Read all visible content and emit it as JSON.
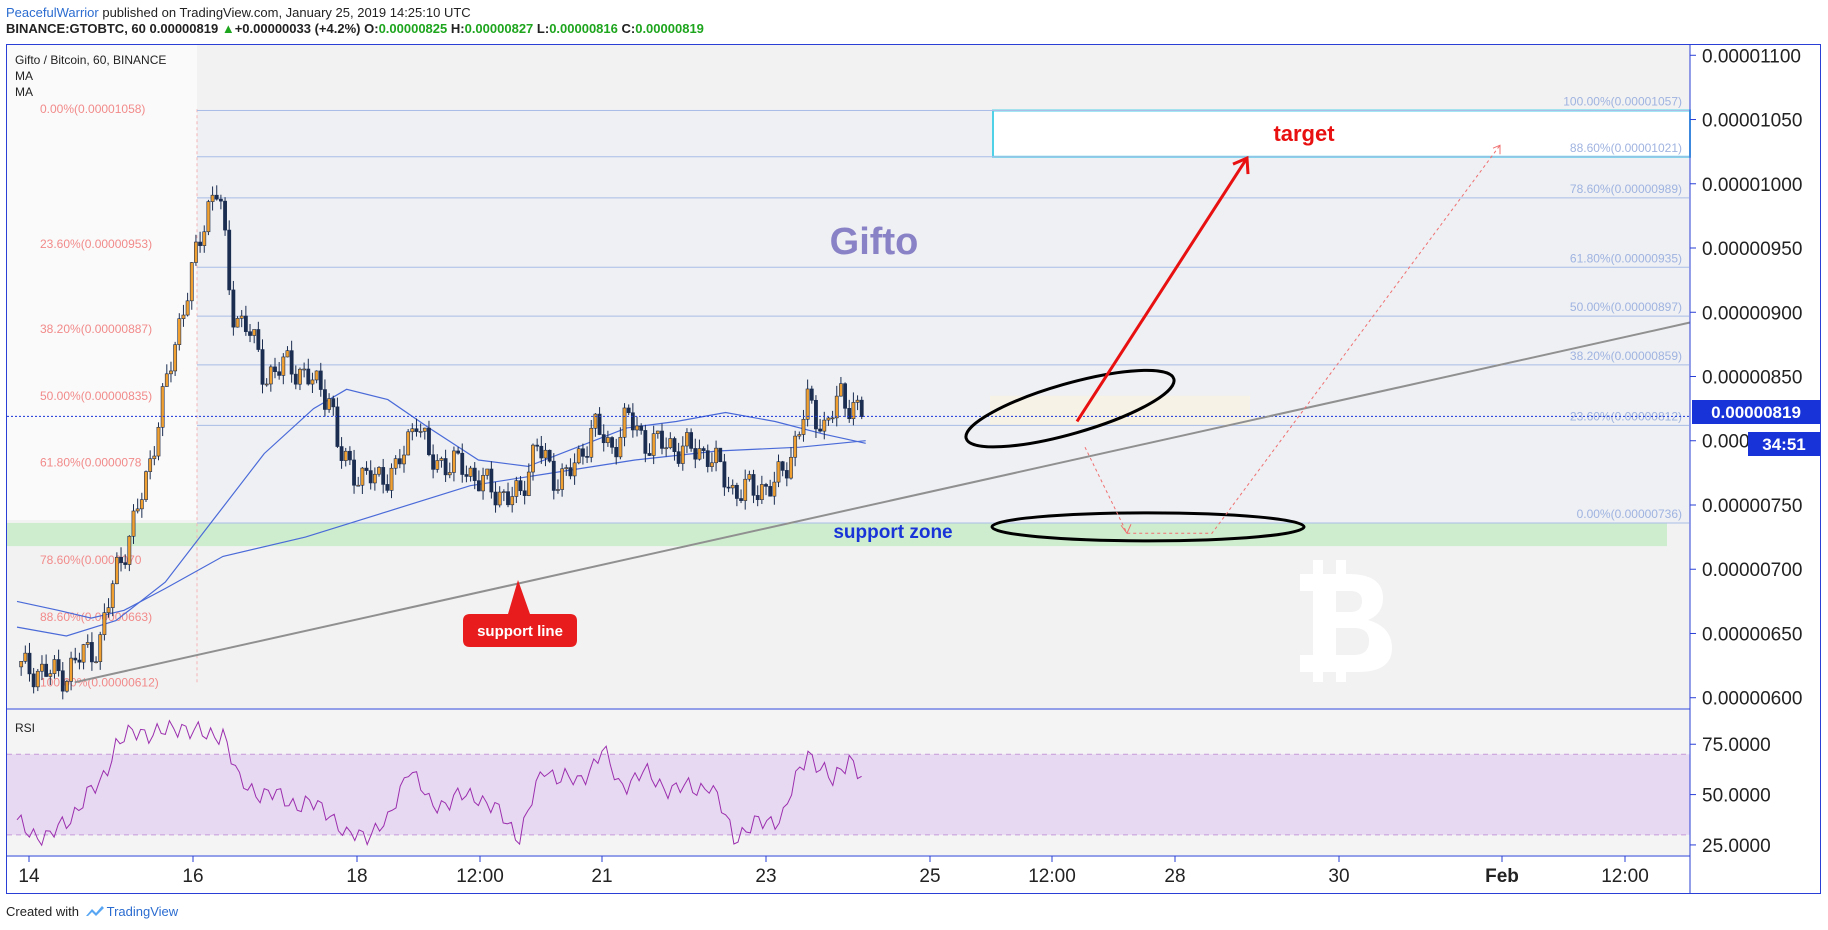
{
  "header": {
    "author": "PeacefulWarrior",
    "published": "published on TradingView.com, January 25, 2019 14:25:10 UTC",
    "symbol": "BINANCE:GTOBTC, 60",
    "last": "0.00000819",
    "change": "+0.00000033 (+4.2%)",
    "o_label": "O:",
    "o": "0.00000825",
    "h_label": "H:",
    "h": "0.00000827",
    "l_label": "L:",
    "l": "0.00000816",
    "c_label": "C:",
    "c": "0.00000819"
  },
  "legend": {
    "title": "Gifto / Bitcoin, 60, BINANCE",
    "ma1": "MA",
    "ma2": "MA"
  },
  "rsi_label": "RSI",
  "annotations": {
    "gifto": "Gifto",
    "target": "target",
    "support_zone": "support zone",
    "support_line": "support line",
    "price_tag": "0.00000819",
    "countdown": "34:51"
  },
  "footer": {
    "created": "Created with",
    "brand": "TradingView"
  },
  "colors": {
    "candle_up": "#f0a030",
    "candle_down": "#1b2d50",
    "ma": "#4a6ad8",
    "rsi": "#9b2fae",
    "fib_left": "#f28a8a",
    "fib_right": "#9fb3e0",
    "target_box": "#4fd1e8",
    "arrow_red": "#e81010",
    "accent_blue": "#1834d8"
  },
  "chart_data": [
    {
      "type": "candlestick",
      "title": "Gifto / Bitcoin, 60, BINANCE",
      "x_tick_labels": [
        "14",
        "16",
        "18",
        "12:00",
        "21",
        "23",
        "25",
        "12:00",
        "28",
        "30",
        "Feb",
        "12:00"
      ],
      "y_tick_labels": [
        "0.00001100",
        "0.00001050",
        "0.00001000",
        "0.00000950",
        "0.00000900",
        "0.00000850",
        "0.000",
        "0.00000750",
        "0.00000700",
        "0.00000650",
        "0.00000600"
      ],
      "y_ticks": [
        1.1e-05,
        1.05e-05,
        1e-05,
        9.5e-06,
        9e-06,
        8.5e-06,
        8e-06,
        7.5e-06,
        7e-06,
        6.5e-06,
        6e-06
      ],
      "ylim": [
        5.92e-06,
        1.108e-05
      ],
      "last_price": 8.19e-06,
      "close_path": [
        {
          "x": 0.0,
          "y": 6.24e-06
        },
        {
          "x": 0.3,
          "y": 6.2e-06
        },
        {
          "x": 0.6,
          "y": 6.18e-06
        },
        {
          "x": 0.8,
          "y": 6.35e-06
        },
        {
          "x": 1.0,
          "y": 6.4e-06
        },
        {
          "x": 1.2,
          "y": 7e-06
        },
        {
          "x": 1.4,
          "y": 7.3e-06
        },
        {
          "x": 1.6,
          "y": 7.8e-06
        },
        {
          "x": 1.8,
          "y": 8.4e-06
        },
        {
          "x": 2.0,
          "y": 9e-06
        },
        {
          "x": 2.2,
          "y": 9.5e-06
        },
        {
          "x": 2.35,
          "y": 9.9e-06
        },
        {
          "x": 2.45,
          "y": 1e-05
        },
        {
          "x": 2.6,
          "y": 9e-06
        },
        {
          "x": 2.8,
          "y": 8.9e-06
        },
        {
          "x": 3.0,
          "y": 8.5e-06
        },
        {
          "x": 3.3,
          "y": 8.6e-06
        },
        {
          "x": 3.6,
          "y": 8.45e-06
        },
        {
          "x": 3.8,
          "y": 8.35e-06
        },
        {
          "x": 3.9,
          "y": 7.9e-06
        },
        {
          "x": 4.2,
          "y": 7.7e-06
        },
        {
          "x": 4.6,
          "y": 7.75e-06
        },
        {
          "x": 4.85,
          "y": 8.2e-06
        },
        {
          "x": 5.0,
          "y": 7.85e-06
        },
        {
          "x": 5.4,
          "y": 7.8e-06
        },
        {
          "x": 5.8,
          "y": 7.6e-06
        },
        {
          "x": 6.1,
          "y": 7.55e-06
        },
        {
          "x": 6.3,
          "y": 8e-06
        },
        {
          "x": 6.5,
          "y": 7.7e-06
        },
        {
          "x": 6.8,
          "y": 7.8e-06
        },
        {
          "x": 7.0,
          "y": 8.15e-06
        },
        {
          "x": 7.2,
          "y": 7.9e-06
        },
        {
          "x": 7.4,
          "y": 8.2e-06
        },
        {
          "x": 7.6,
          "y": 8e-06
        },
        {
          "x": 8.0,
          "y": 7.95e-06
        },
        {
          "x": 8.4,
          "y": 7.9e-06
        },
        {
          "x": 8.7,
          "y": 7.6e-06
        },
        {
          "x": 9.2,
          "y": 7.65e-06
        },
        {
          "x": 9.4,
          "y": 7.9e-06
        },
        {
          "x": 9.6,
          "y": 8.3e-06
        },
        {
          "x": 9.8,
          "y": 8.1e-06
        },
        {
          "x": 10.0,
          "y": 8.35e-06
        },
        {
          "x": 10.3,
          "y": 8.19e-06
        }
      ],
      "ma_slow": [
        {
          "x": 0.0,
          "y": 6.75e-06
        },
        {
          "x": 0.5,
          "y": 6.68e-06
        },
        {
          "x": 0.9,
          "y": 6.62e-06
        },
        {
          "x": 1.3,
          "y": 6.68e-06
        },
        {
          "x": 1.8,
          "y": 6.85e-06
        },
        {
          "x": 2.5,
          "y": 7.1e-06
        },
        {
          "x": 3.5,
          "y": 7.25e-06
        },
        {
          "x": 4.5,
          "y": 7.45e-06
        },
        {
          "x": 5.5,
          "y": 7.65e-06
        },
        {
          "x": 6.5,
          "y": 7.75e-06
        },
        {
          "x": 7.5,
          "y": 7.85e-06
        },
        {
          "x": 8.5,
          "y": 7.92e-06
        },
        {
          "x": 9.5,
          "y": 7.95e-06
        },
        {
          "x": 10.3,
          "y": 8e-06
        }
      ],
      "ma_fast": [
        {
          "x": 0.0,
          "y": 6.55e-06
        },
        {
          "x": 0.6,
          "y": 6.48e-06
        },
        {
          "x": 1.2,
          "y": 6.6e-06
        },
        {
          "x": 1.8,
          "y": 6.9e-06
        },
        {
          "x": 2.4,
          "y": 7.4e-06
        },
        {
          "x": 3.0,
          "y": 7.9e-06
        },
        {
          "x": 3.6,
          "y": 8.25e-06
        },
        {
          "x": 4.0,
          "y": 8.4e-06
        },
        {
          "x": 4.5,
          "y": 8.32e-06
        },
        {
          "x": 5.0,
          "y": 8.1e-06
        },
        {
          "x": 5.6,
          "y": 7.85e-06
        },
        {
          "x": 6.2,
          "y": 7.8e-06
        },
        {
          "x": 6.8,
          "y": 7.95e-06
        },
        {
          "x": 7.4,
          "y": 8.1e-06
        },
        {
          "x": 8.0,
          "y": 8.15e-06
        },
        {
          "x": 8.6,
          "y": 8.22e-06
        },
        {
          "x": 9.2,
          "y": 8.15e-06
        },
        {
          "x": 9.8,
          "y": 8.05e-06
        },
        {
          "x": 10.3,
          "y": 7.98e-06
        }
      ],
      "fib_left": [
        {
          "label": "0.00%(0.00001058)",
          "value": 1.058e-05
        },
        {
          "label": "23.60%(0.00000953)",
          "value": 9.53e-06
        },
        {
          "label": "38.20%(0.00000887)",
          "value": 8.87e-06
        },
        {
          "label": "50.00%(0.00000835)",
          "value": 8.35e-06
        },
        {
          "label": "61.80%(0.0000078",
          "value": 7.83e-06
        },
        {
          "label": "78.60%(0.0000070",
          "value": 7.07e-06
        },
        {
          "label": "88.60%(0.00000663)",
          "value": 6.63e-06
        },
        {
          "label": "100.00%(0.00000612)",
          "value": 6.12e-06
        }
      ],
      "fib_right": [
        {
          "label": "100.00%(0.00001057)",
          "value": 1.057e-05
        },
        {
          "label": "88.60%(0.00001021)",
          "value": 1.021e-05
        },
        {
          "label": "78.60%(0.00000989)",
          "value": 9.89e-06
        },
        {
          "label": "61.80%(0.00000935)",
          "value": 9.35e-06
        },
        {
          "label": "50.00%(0.00000897)",
          "value": 8.97e-06
        },
        {
          "label": "38.20%(0.00000859)",
          "value": 8.59e-06
        },
        {
          "label": "23.60%(0.00000812)",
          "value": 8.12e-06
        },
        {
          "label": "0.00%(0.00000736)",
          "value": 7.36e-06
        }
      ],
      "support_zone": [
        7.18e-06,
        7.36e-06
      ],
      "target_zone": [
        1.021e-05,
        1.057e-05
      ]
    },
    {
      "type": "line",
      "title": "RSI",
      "y_tick_labels": [
        "75.0000",
        "50.0000",
        "25.0000"
      ],
      "y_ticks": [
        75,
        50,
        25
      ],
      "ylim": [
        20,
        92
      ],
      "band": [
        30,
        70
      ],
      "values": [
        {
          "x": 0.0,
          "y": 35
        },
        {
          "x": 0.4,
          "y": 28
        },
        {
          "x": 0.7,
          "y": 42
        },
        {
          "x": 1.0,
          "y": 55
        },
        {
          "x": 1.2,
          "y": 75
        },
        {
          "x": 1.5,
          "y": 82
        },
        {
          "x": 1.8,
          "y": 80
        },
        {
          "x": 2.0,
          "y": 85
        },
        {
          "x": 2.3,
          "y": 78
        },
        {
          "x": 2.5,
          "y": 82
        },
        {
          "x": 2.7,
          "y": 55
        },
        {
          "x": 3.2,
          "y": 48
        },
        {
          "x": 3.8,
          "y": 42
        },
        {
          "x": 4.0,
          "y": 28
        },
        {
          "x": 4.5,
          "y": 35
        },
        {
          "x": 4.75,
          "y": 65
        },
        {
          "x": 5.0,
          "y": 45
        },
        {
          "x": 5.6,
          "y": 50
        },
        {
          "x": 6.1,
          "y": 30
        },
        {
          "x": 6.4,
          "y": 63
        },
        {
          "x": 6.8,
          "y": 55
        },
        {
          "x": 7.1,
          "y": 72
        },
        {
          "x": 7.3,
          "y": 55
        },
        {
          "x": 7.6,
          "y": 60
        },
        {
          "x": 8.0,
          "y": 52
        },
        {
          "x": 8.4,
          "y": 55
        },
        {
          "x": 8.7,
          "y": 30
        },
        {
          "x": 9.3,
          "y": 40
        },
        {
          "x": 9.6,
          "y": 72
        },
        {
          "x": 9.9,
          "y": 55
        },
        {
          "x": 10.1,
          "y": 70
        },
        {
          "x": 10.3,
          "y": 54
        }
      ]
    }
  ]
}
